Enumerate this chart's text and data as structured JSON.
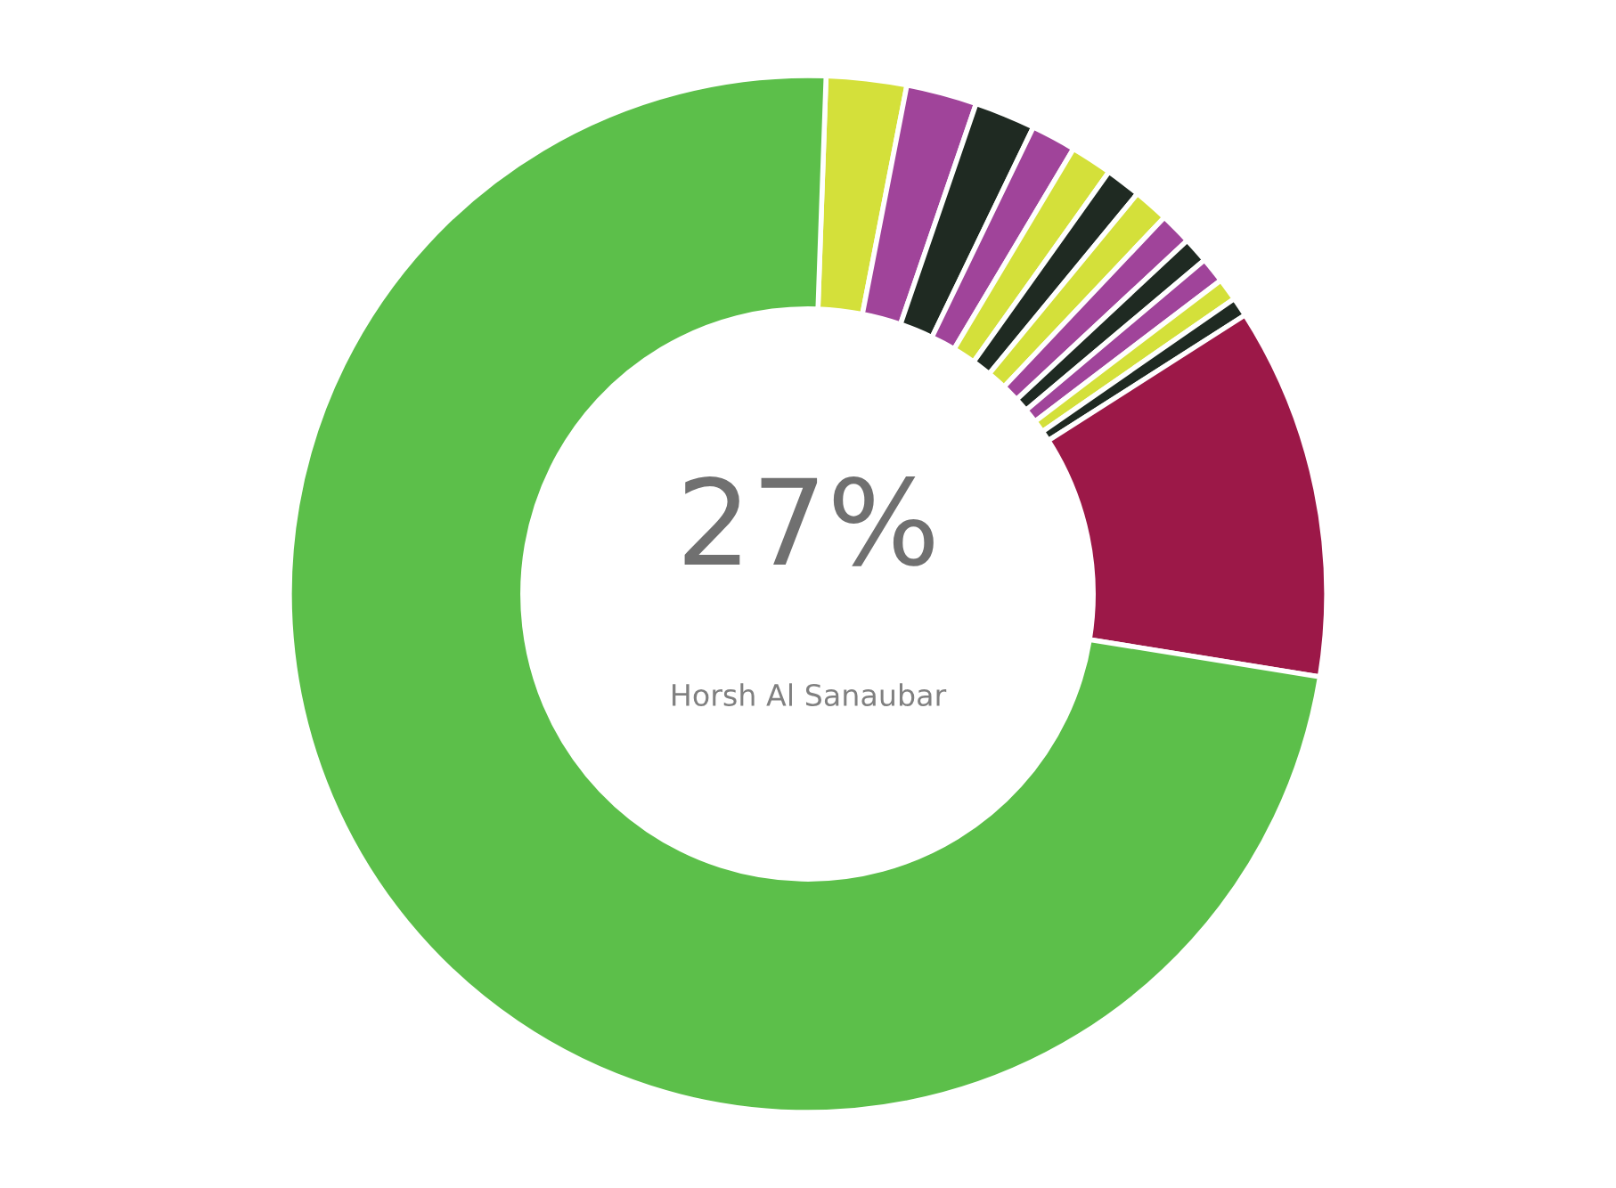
{
  "chart_data": {
    "type": "donut",
    "categories": [
      null,
      null,
      null,
      null,
      null,
      null,
      null,
      null,
      null,
      null,
      null,
      null,
      null,
      null
    ],
    "values": [
      2.5,
      2.2,
      1.9,
      1.4,
      1.3,
      1.1,
      1.1,
      1.0,
      0.8,
      0.8,
      0.7,
      0.6,
      11.6,
      73.0
    ],
    "colors": [
      "#d4e03a",
      "#a0449a",
      "#1f2a22",
      "#a0449a",
      "#d4e03a",
      "#1f2a22",
      "#d4e03a",
      "#a0449a",
      "#1f2a22",
      "#a0449a",
      "#d4e03a",
      "#1f2a22",
      "#9c1848",
      "#5cbf4a"
    ],
    "annotations": [
      "27%",
      "Horsh Al Sanaubar"
    ]
  }
}
